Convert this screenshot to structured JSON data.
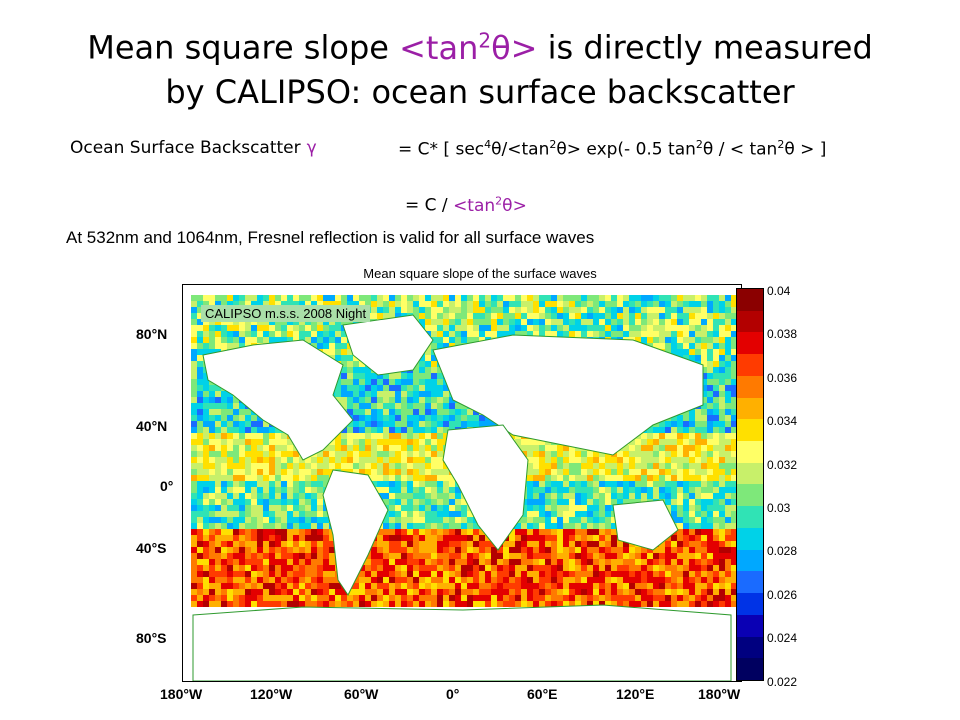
{
  "slide": {
    "title_line1_a": "Mean square slope ",
    "title_line1_b": "<tan",
    "title_line1_sup": "2",
    "title_line1_c": "θ>",
    "title_line1_d": " is directly measured",
    "title_line2": "by CALIPSO: ocean surface backscatter",
    "eq1_label": "Ocean Surface Backscatter",
    "eq1_gamma": "γ",
    "eq1_rhs_1": "= C* [ sec",
    "eq1_rhs_sup1": "4",
    "eq1_rhs_2": "θ/<tan",
    "eq1_rhs_sup2": "2",
    "eq1_rhs_3": "θ> exp(- 0.5 tan",
    "eq1_rhs_sup3": "2",
    "eq1_rhs_4": "θ / < tan",
    "eq1_rhs_sup4": "2",
    "eq1_rhs_5": "θ > ]",
    "eq2_a": "= C / ",
    "eq2_b": "<tan",
    "eq2_sup": "2",
    "eq2_c": "θ>",
    "note": "At 532nm and 1064nm, Fresnel reflection is valid for all surface waves"
  },
  "map": {
    "title": "Mean square slope of the surface waves",
    "inset_label": "CALIPSO m.s.s. 2008 Night",
    "lat_ticks": [
      "80°N",
      "40°N",
      "0°",
      "40°S",
      "80°S"
    ],
    "lon_ticks": [
      "180°W",
      "120°W",
      "60°W",
      "0°",
      "60°E",
      "120°E",
      "180°W"
    ],
    "colorbar_ticks": [
      "0.04",
      "0.038",
      "0.036",
      "0.034",
      "0.032",
      "0.03",
      "0.028",
      "0.026",
      "0.024",
      "0.022"
    ],
    "colors": [
      "#8b0000",
      "#b30000",
      "#e30000",
      "#ff3b00",
      "#ff7a00",
      "#ffb000",
      "#ffe000",
      "#ffff66",
      "#c8f06a",
      "#7ee87a",
      "#30e3b5",
      "#00d2e8",
      "#00a8ff",
      "#1a6bff",
      "#0033e6",
      "#0a00b4",
      "#000080",
      "#000060"
    ]
  }
}
